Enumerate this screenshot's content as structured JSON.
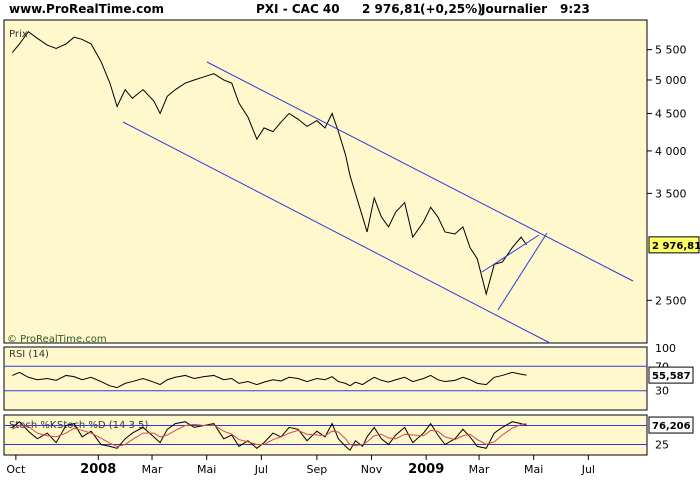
{
  "header": {
    "site": "www.ProRealTime.com",
    "instrument": "PXI - CAC 40",
    "price": "2 976,81",
    "change": "(+0,25%)",
    "period": "Journalier",
    "time": "9:23"
  },
  "watermark": "© ProRealTime.com",
  "colors": {
    "panel_bg": "#fff8cc",
    "border": "#000000",
    "channel": "#2f3bdc",
    "price_line": "#000000",
    "stoch_k": "#000000",
    "stoch_d": "#d24a4a",
    "value_box": "#ffff66"
  },
  "chart_data": [
    {
      "type": "line",
      "panel": "price",
      "label": "Prix",
      "y_ticks": [
        "5 500",
        "5 000",
        "4 500",
        "4 000",
        "3 500",
        "2 500"
      ],
      "y_tick_values": [
        5500,
        5000,
        4500,
        4000,
        3500,
        2500
      ],
      "y_scale": "log",
      "ylim": [
        2200,
        6000
      ],
      "last_value": "2 976,81",
      "series": [
        {
          "x": [
            "2007-09-27",
            "2007-10-05",
            "2007-10-15",
            "2007-10-25",
            "2007-11-05",
            "2007-11-15",
            "2007-11-26",
            "2007-12-05",
            "2007-12-14",
            "2007-12-24",
            "2008-01-04",
            "2008-01-14",
            "2008-01-22",
            "2008-01-31",
            "2008-02-08",
            "2008-02-20",
            "2008-03-03",
            "2008-03-10",
            "2008-03-18",
            "2008-03-27",
            "2008-04-07",
            "2008-04-17",
            "2008-04-28",
            "2008-05-09",
            "2008-05-20",
            "2008-05-29",
            "2008-06-06",
            "2008-06-16",
            "2008-06-26",
            "2008-07-04",
            "2008-07-14",
            "2008-07-23",
            "2008-08-01",
            "2008-08-11",
            "2008-08-21",
            "2008-09-01",
            "2008-09-10",
            "2008-09-18",
            "2008-09-25",
            "2008-10-03",
            "2008-10-08",
            "2008-10-14",
            "2008-10-22",
            "2008-10-27",
            "2008-11-04",
            "2008-11-12",
            "2008-11-20",
            "2008-11-28",
            "2008-12-08",
            "2008-12-17",
            "2008-12-29",
            "2009-01-06",
            "2009-01-14",
            "2009-01-22",
            "2009-02-02",
            "2009-02-11",
            "2009-02-19",
            "2009-02-27",
            "2009-03-09",
            "2009-03-18",
            "2009-03-27",
            "2009-04-07",
            "2009-04-17",
            "2009-04-23"
          ],
          "y": [
            5450,
            5600,
            5820,
            5700,
            5580,
            5520,
            5600,
            5720,
            5680,
            5600,
            5300,
            4950,
            4600,
            4850,
            4720,
            4850,
            4680,
            4500,
            4750,
            4850,
            4950,
            5000,
            5050,
            5100,
            5000,
            4950,
            4650,
            4450,
            4150,
            4300,
            4250,
            4380,
            4500,
            4420,
            4320,
            4400,
            4300,
            4500,
            4250,
            3950,
            3700,
            3500,
            3250,
            3100,
            3450,
            3250,
            3150,
            3300,
            3400,
            3050,
            3200,
            3350,
            3250,
            3100,
            3080,
            3150,
            2950,
            2850,
            2550,
            2800,
            2820,
            2950,
            3050,
            2976.81
          ]
        }
      ],
      "x_ticks": [
        "Oct",
        "2008",
        "Mar",
        "Mai",
        "Jul",
        "Sep",
        "Nov",
        "2009",
        "Mar",
        "Mai",
        "Jul"
      ]
    },
    {
      "type": "line",
      "panel": "rsi",
      "label": "RSI (14)",
      "y_ticks": [
        "100",
        "70",
        "30"
      ],
      "ylim": [
        0,
        100
      ],
      "last_value": "55,587",
      "series": [
        {
          "y": [
            55,
            60,
            52,
            48,
            50,
            47,
            55,
            53,
            48,
            52,
            45,
            38,
            35,
            42,
            45,
            50,
            44,
            40,
            48,
            52,
            55,
            50,
            53,
            55,
            48,
            50,
            42,
            45,
            40,
            44,
            48,
            46,
            52,
            50,
            45,
            50,
            48,
            53,
            45,
            42,
            38,
            44,
            40,
            45,
            52,
            47,
            44,
            48,
            52,
            45,
            50,
            55,
            48,
            45,
            47,
            52,
            48,
            42,
            40,
            52,
            55,
            60,
            57,
            55.587
          ]
        }
      ]
    },
    {
      "type": "line",
      "panel": "stochastic",
      "label_k": "Stoch %K",
      "label_d": "Stoch %D (14 3 5)",
      "y_ticks": [
        "75",
        "25"
      ],
      "ylim": [
        0,
        100
      ],
      "last_value": "76,206",
      "series": [
        {
          "name": "Stoch %K",
          "y": [
            70,
            85,
            60,
            40,
            55,
            30,
            75,
            80,
            45,
            60,
            25,
            20,
            15,
            40,
            55,
            70,
            45,
            30,
            65,
            80,
            85,
            70,
            75,
            80,
            40,
            50,
            20,
            35,
            15,
            30,
            55,
            45,
            70,
            65,
            35,
            60,
            45,
            80,
            40,
            20,
            10,
            35,
            20,
            45,
            70,
            40,
            25,
            50,
            70,
            30,
            55,
            80,
            50,
            25,
            40,
            65,
            45,
            20,
            15,
            55,
            70,
            85,
            80,
            76.2
          ]
        },
        {
          "name": "Stoch %D (14 3 5)",
          "y": [
            65,
            75,
            72,
            55,
            48,
            45,
            55,
            68,
            62,
            55,
            42,
            28,
            20,
            25,
            38,
            55,
            55,
            45,
            50,
            62,
            75,
            78,
            75,
            76,
            60,
            52,
            38,
            32,
            25,
            25,
            38,
            45,
            55,
            62,
            52,
            50,
            48,
            60,
            58,
            40,
            25,
            22,
            25,
            32,
            48,
            52,
            42,
            40,
            52,
            50,
            48,
            62,
            60,
            45,
            38,
            48,
            52,
            38,
            25,
            32,
            50,
            68,
            78,
            80
          ]
        }
      ]
    }
  ]
}
